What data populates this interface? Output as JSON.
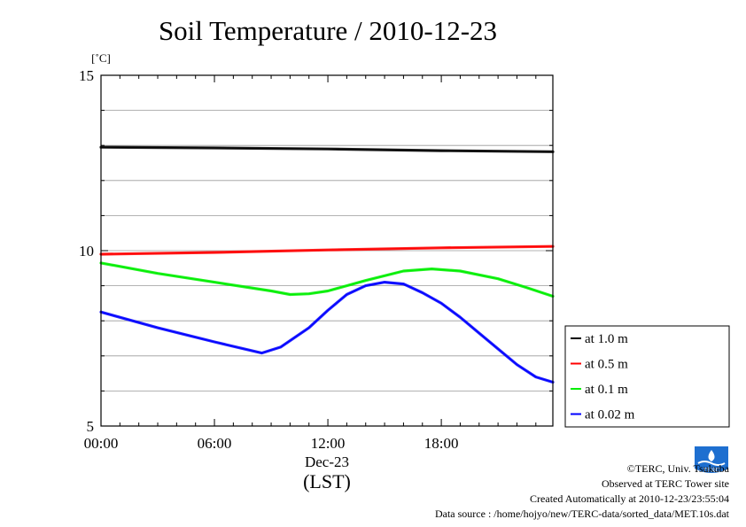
{
  "chart_data": {
    "type": "line",
    "title": "Soil Temperature / 2010-12-23",
    "ylabel": "[˚C]",
    "xlabel": "(LST)",
    "date_label": "Dec-23",
    "ylim": [
      5,
      15
    ],
    "xlim": [
      0,
      23.9
    ],
    "x_units": "hours (LST)",
    "y_ticks": [
      5,
      10,
      15
    ],
    "x_ticks": [
      {
        "value": 0,
        "label": "00:00"
      },
      {
        "value": 6,
        "label": "06:00"
      },
      {
        "value": 12,
        "label": "12:00"
      },
      {
        "value": 18,
        "label": "18:00"
      }
    ],
    "grid": true,
    "legend_position": "right",
    "series": [
      {
        "name": "at 1.0 m",
        "color": "#000000",
        "points": [
          [
            0,
            12.95
          ],
          [
            6,
            12.93
          ],
          [
            12,
            12.9
          ],
          [
            18,
            12.85
          ],
          [
            23.9,
            12.82
          ]
        ]
      },
      {
        "name": "at 0.5 m",
        "color": "#ff0000",
        "points": [
          [
            0,
            9.9
          ],
          [
            6,
            9.95
          ],
          [
            12,
            10.02
          ],
          [
            18,
            10.08
          ],
          [
            23.9,
            10.12
          ]
        ]
      },
      {
        "name": "at 0.1 m",
        "color": "#00ee00",
        "points": [
          [
            0,
            9.65
          ],
          [
            3,
            9.35
          ],
          [
            6,
            9.1
          ],
          [
            9,
            8.85
          ],
          [
            10,
            8.75
          ],
          [
            11,
            8.77
          ],
          [
            12,
            8.85
          ],
          [
            14,
            9.15
          ],
          [
            16,
            9.42
          ],
          [
            17.5,
            9.48
          ],
          [
            19,
            9.42
          ],
          [
            21,
            9.2
          ],
          [
            22.5,
            8.95
          ],
          [
            23.9,
            8.7
          ]
        ]
      },
      {
        "name": "at 0.02 m",
        "color": "#0000ff",
        "points": [
          [
            0,
            8.25
          ],
          [
            3,
            7.8
          ],
          [
            6,
            7.4
          ],
          [
            8.5,
            7.08
          ],
          [
            9.5,
            7.25
          ],
          [
            11,
            7.8
          ],
          [
            12,
            8.3
          ],
          [
            13,
            8.75
          ],
          [
            14,
            9.0
          ],
          [
            15,
            9.1
          ],
          [
            16,
            9.05
          ],
          [
            17,
            8.8
          ],
          [
            18,
            8.5
          ],
          [
            19,
            8.1
          ],
          [
            20,
            7.65
          ],
          [
            21,
            7.2
          ],
          [
            22,
            6.75
          ],
          [
            23,
            6.4
          ],
          [
            23.9,
            6.25
          ]
        ]
      }
    ]
  },
  "footer": {
    "copyright": "©TERC, Univ. Tsukuba",
    "site": "Observed at TERC Tower site",
    "created": "Created Automatically at 2010-12-23/23:55:04",
    "source": "Data source : /home/hojyo/new/TERC-data/sorted_data/MET.10s.dat"
  },
  "logo": {
    "text": "TERC",
    "color": "#1e6fd0"
  }
}
